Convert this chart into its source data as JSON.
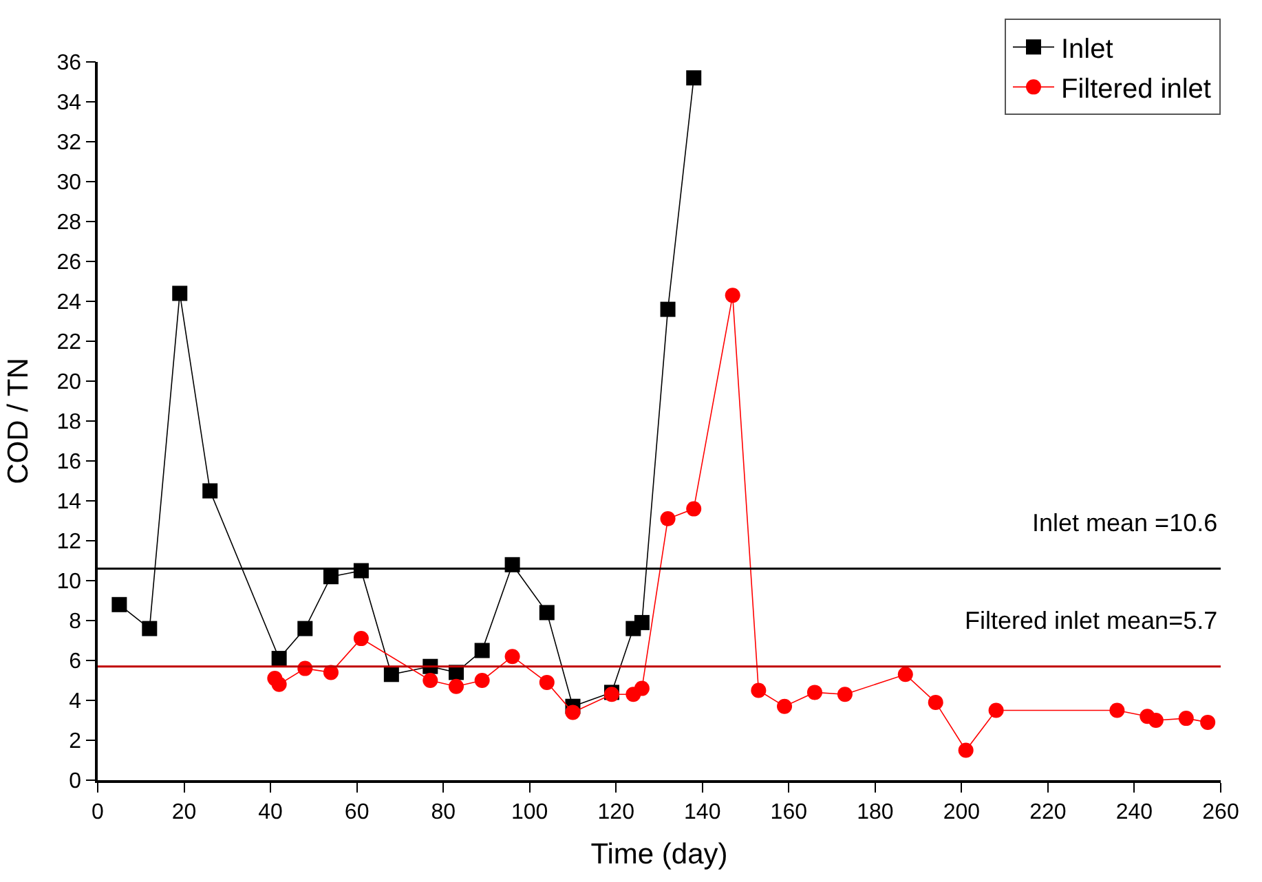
{
  "chart_data": {
    "type": "line",
    "xlabel": "Time (day)",
    "ylabel": "COD / TN",
    "xlim": [
      0,
      260
    ],
    "xticks": [
      0,
      20,
      40,
      60,
      80,
      100,
      120,
      140,
      160,
      180,
      200,
      220,
      240,
      260
    ],
    "ylim": [
      0,
      36
    ],
    "yticks": [
      0,
      2,
      4,
      6,
      8,
      10,
      12,
      14,
      16,
      18,
      20,
      22,
      24,
      26,
      28,
      30,
      32,
      34,
      36
    ],
    "legend": "top right",
    "line_style": "solid",
    "series": [
      {
        "name": "Inlet",
        "color": "#000000",
        "marker": "square",
        "x": [
          5,
          12,
          19,
          26,
          42,
          48,
          54,
          61,
          68,
          77,
          83,
          89,
          96,
          104,
          110,
          119,
          124,
          126,
          132,
          138
        ],
        "values": [
          8.8,
          7.6,
          24.4,
          14.5,
          6.1,
          7.6,
          10.2,
          10.5,
          5.3,
          5.7,
          5.4,
          6.5,
          10.8,
          8.4,
          3.7,
          4.4,
          7.6,
          7.9,
          23.6,
          35.2
        ]
      },
      {
        "name": "Filtered inlet",
        "color": "#ff0000",
        "marker": "circle",
        "x": [
          41,
          42,
          48,
          54,
          61,
          77,
          83,
          89,
          96,
          104,
          110,
          119,
          124,
          126,
          132,
          138,
          147,
          153,
          159,
          166,
          173,
          187,
          194,
          201,
          208,
          236,
          243,
          245,
          252,
          257
        ],
        "values": [
          5.1,
          4.8,
          5.6,
          5.4,
          7.1,
          5.0,
          4.7,
          5.0,
          6.2,
          4.9,
          3.4,
          4.3,
          4.3,
          4.6,
          13.1,
          13.6,
          24.3,
          4.5,
          3.7,
          4.4,
          4.3,
          5.3,
          3.9,
          1.5,
          3.5,
          3.5,
          3.2,
          3.0,
          3.1,
          2.9
        ]
      }
    ],
    "ref_lines": [
      {
        "axis": "y",
        "value": 10.6,
        "label": "Inlet mean =10.6",
        "color": "#000000"
      },
      {
        "axis": "y",
        "value": 5.7,
        "label": "Filtered inlet mean=5.7",
        "color": "#c00000"
      }
    ]
  }
}
